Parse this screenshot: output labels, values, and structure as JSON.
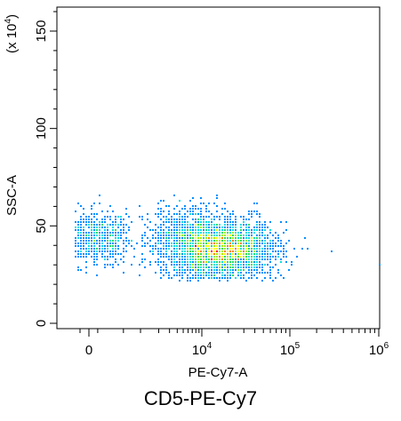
{
  "chart_data": {
    "type": "scatter",
    "title": "CD5-PE-Cy7",
    "xlabel": "PE-Cy7-A",
    "ylabel": "SSC-A",
    "y_multiplier": "(x 10^4)",
    "y_multiplier_parts": {
      "prefix": "(x 10",
      "exp": "4",
      "suffix": ")"
    },
    "x_scale": "biexponential",
    "xlim": [
      -300,
      1000000
    ],
    "ylim": [
      -2,
      160
    ],
    "x_ticks": [
      {
        "value": 0,
        "base": "0",
        "exp": ""
      },
      {
        "value": 10000,
        "base": "10",
        "exp": "4"
      },
      {
        "value": 100000,
        "base": "10",
        "exp": "5"
      },
      {
        "value": 1000000,
        "base": "10",
        "exp": "6"
      }
    ],
    "y_ticks": [
      0,
      50,
      100,
      150
    ],
    "grid": false,
    "legend": "none",
    "colormap": [
      "#0000ff",
      "#0090ff",
      "#00e0e0",
      "#20e060",
      "#a0f000",
      "#ffff00",
      "#ff8000",
      "#ff0000"
    ],
    "populations": [
      {
        "name": "",
        "x_center": 50,
        "x_spread": 250,
        "y_center": 44,
        "y_spread": 7,
        "count": 700
      },
      {
        "name": "",
        "x_center": 18000,
        "x_spread": 0.28,
        "y_center": 38,
        "y_spread": 7,
        "count": 2600
      },
      {
        "name": "",
        "x_center": 6000,
        "x_spread": 0.35,
        "y_center": 42,
        "y_spread": 9,
        "count": 900
      }
    ]
  }
}
